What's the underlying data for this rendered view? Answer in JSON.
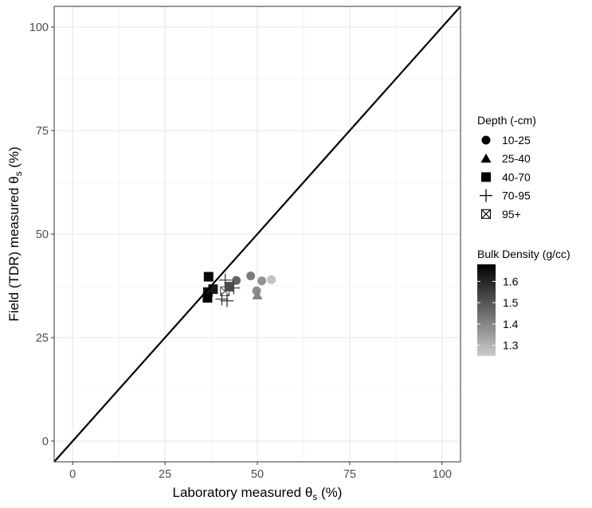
{
  "chart_data": {
    "type": "scatter",
    "xlabel": {
      "main": "Laboratory measured θ",
      "sub": "s",
      "unit": " (%)"
    },
    "ylabel": {
      "main": "Field (TDR) measured θ",
      "sub": "s",
      "unit": " (%)"
    },
    "xlim": [
      -5,
      105
    ],
    "ylim": [
      -5,
      105
    ],
    "x_ticks": [
      0,
      25,
      50,
      75,
      100
    ],
    "y_ticks": [
      0,
      25,
      50,
      75,
      100
    ],
    "grid": true,
    "reference_line": {
      "type": "1:1",
      "color": "#000000"
    },
    "shape_legend": {
      "title": "Depth (-cm)",
      "entries": [
        {
          "label": "10-25",
          "shape": "circle"
        },
        {
          "label": "25-40",
          "shape": "triangle"
        },
        {
          "label": "40-70",
          "shape": "square"
        },
        {
          "label": "70-95",
          "shape": "plus"
        },
        {
          "label": "95+",
          "shape": "boxcross"
        }
      ]
    },
    "color_legend": {
      "title": "Bulk Density (g/cc)",
      "ticks": [
        1.3,
        1.4,
        1.5,
        1.6
      ],
      "min": 1.25,
      "max": 1.68,
      "low_color": "#cccccc",
      "high_color": "#000000"
    },
    "points": [
      {
        "x": 53.8,
        "y": 39.0,
        "depth": "10-25",
        "bd": 1.27
      },
      {
        "x": 51.2,
        "y": 38.7,
        "depth": "10-25",
        "bd": 1.37
      },
      {
        "x": 48.2,
        "y": 39.9,
        "depth": "10-25",
        "bd": 1.42
      },
      {
        "x": 49.8,
        "y": 36.3,
        "depth": "10-25",
        "bd": 1.38
      },
      {
        "x": 44.3,
        "y": 38.8,
        "depth": "10-25",
        "bd": 1.47
      },
      {
        "x": 42.5,
        "y": 37.3,
        "depth": "10-25",
        "bd": 1.5
      },
      {
        "x": 50.0,
        "y": 35.2,
        "depth": "25-40",
        "bd": 1.4
      },
      {
        "x": 36.8,
        "y": 39.7,
        "depth": "40-70",
        "bd": 1.66
      },
      {
        "x": 36.5,
        "y": 34.6,
        "depth": "40-70",
        "bd": 1.67
      },
      {
        "x": 36.6,
        "y": 36.0,
        "depth": "40-70",
        "bd": 1.64
      },
      {
        "x": 38.0,
        "y": 36.7,
        "depth": "40-70",
        "bd": 1.63
      },
      {
        "x": 42.4,
        "y": 37.3,
        "depth": "40-70",
        "bd": 1.52
      },
      {
        "x": 41.3,
        "y": 38.9,
        "depth": "70-95",
        "bd": 1.55
      },
      {
        "x": 40.4,
        "y": 34.3,
        "depth": "70-95",
        "bd": 1.56
      },
      {
        "x": 41.8,
        "y": 33.9,
        "depth": "70-95",
        "bd": 1.58
      },
      {
        "x": 43.6,
        "y": 37.0,
        "depth": "70-95",
        "bd": 1.54
      },
      {
        "x": 41.2,
        "y": 36.2,
        "depth": "95+",
        "bd": 1.52
      }
    ]
  }
}
